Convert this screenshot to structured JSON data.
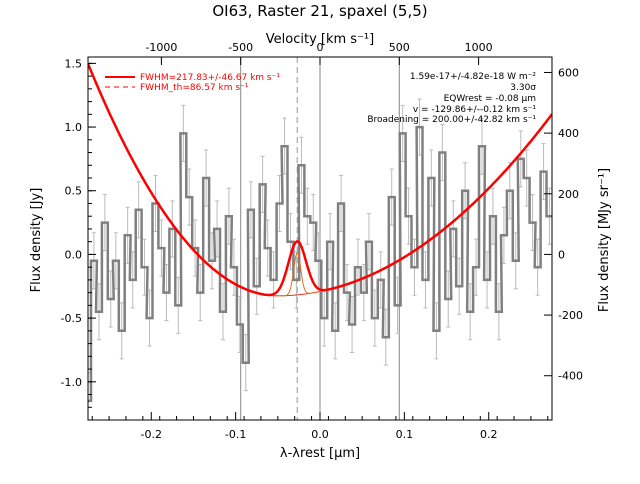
{
  "chart_data": {
    "type": "line",
    "title": "OI63, Raster 21, spaxel (5,5)",
    "xlabel": "λ-λrest [μm]",
    "ylabel_left": "Flux density [Jy]",
    "ylabel_right": "Flux density [MJy sr⁻¹]",
    "xlabel_top": "Velocity [km s⁻¹]",
    "xlim": [
      -0.275,
      0.275
    ],
    "ylim": [
      -1.3,
      1.55
    ],
    "xticks": [
      "-0.2",
      "-0.1",
      "0.0",
      "0.1",
      "0.2"
    ],
    "xtick_values": [
      -0.2,
      -0.1,
      0.0,
      0.1,
      0.2
    ],
    "yticks_left": [
      "-1.0",
      "-0.5",
      "0.0",
      "0.5",
      "1.0",
      "1.5"
    ],
    "ytick_values_left": [
      -1.0,
      -0.5,
      0.0,
      0.5,
      1.0,
      1.5
    ],
    "xticks_top": [
      "-1000",
      "-500",
      "0",
      "500",
      "1000"
    ],
    "xtick_values_top": [
      -1000,
      -500,
      0,
      500,
      1000
    ],
    "yticks_right": [
      "-600",
      "-400",
      "-200",
      "0",
      "200",
      "400",
      "600"
    ],
    "ytick_values_right": [
      -600,
      -400,
      -200,
      0,
      200,
      400,
      600
    ],
    "vertical_lines": [
      -0.094,
      0.0,
      0.094
    ],
    "line_center": -0.027,
    "legend": [
      {
        "label": "FWHM=217.83+/-46.67 km s⁻¹",
        "style": "solid",
        "color": "#ff0000"
      },
      {
        "label": "FWHM_th=86.57 km s⁻¹",
        "style": "dashed",
        "color": "#ff0000"
      }
    ],
    "annotations": [
      "1.59e-17+/-4.82e-18 W m⁻²",
      "3.30σ",
      "EQWrest = -0.08 μm",
      "v = -129.86+/--0.12 km s⁻¹",
      "Broadening = 200.00+/-42.82 km s⁻¹"
    ],
    "series": [
      {
        "name": "spectrum",
        "color": "#808080",
        "x": [
          -0.275,
          -0.268,
          -0.262,
          -0.255,
          -0.248,
          -0.242,
          -0.235,
          -0.228,
          -0.222,
          -0.215,
          -0.208,
          -0.202,
          -0.195,
          -0.188,
          -0.182,
          -0.175,
          -0.168,
          -0.162,
          -0.155,
          -0.148,
          -0.142,
          -0.135,
          -0.128,
          -0.122,
          -0.115,
          -0.108,
          -0.102,
          -0.095,
          -0.088,
          -0.082,
          -0.075,
          -0.068,
          -0.062,
          -0.055,
          -0.048,
          -0.042,
          -0.035,
          -0.028,
          -0.022,
          -0.015,
          -0.008,
          -0.002,
          0.005,
          0.012,
          0.018,
          0.025,
          0.032,
          0.038,
          0.045,
          0.052,
          0.058,
          0.065,
          0.072,
          0.078,
          0.085,
          0.092,
          0.098,
          0.105,
          0.112,
          0.118,
          0.125,
          0.132,
          0.138,
          0.145,
          0.152,
          0.158,
          0.165,
          0.172,
          0.178,
          0.185,
          0.192,
          0.198,
          0.205,
          0.212,
          0.218,
          0.225,
          0.232,
          0.238,
          0.245,
          0.252,
          0.258,
          0.265,
          0.272
        ],
        "y": [
          -1.15,
          -0.05,
          -0.45,
          0.25,
          -0.35,
          -0.05,
          -0.6,
          0.15,
          -0.2,
          0.35,
          -0.1,
          -0.5,
          0.4,
          0.05,
          -0.3,
          0.2,
          -0.4,
          0.95,
          0.45,
          0.05,
          -0.3,
          0.6,
          -0.05,
          0.2,
          -0.45,
          0.3,
          -0.1,
          -0.55,
          -0.85,
          0.35,
          -0.25,
          0.55,
          0.05,
          -0.2,
          0.4,
          0.85,
          0.1,
          -0.2,
          0.7,
          0.3,
          0.25,
          -0.05,
          -0.5,
          0.1,
          -0.6,
          0.4,
          -0.3,
          -0.55,
          -0.1,
          -0.3,
          0.1,
          -0.5,
          -0.2,
          -0.65,
          0.45,
          -0.4,
          0.95,
          0.3,
          -0.1,
          1.0,
          -0.2,
          0.6,
          -0.6,
          0.8,
          -0.35,
          0.2,
          -0.25,
          0.5,
          -0.45,
          -0.1,
          0.85,
          -0.2,
          0.3,
          -0.45,
          0.15,
          0.5,
          -0.05,
          0.75,
          0.6,
          0.25,
          -0.1,
          0.65,
          0.3
        ],
        "yerr": 0.22
      },
      {
        "name": "fit",
        "color": "#ff0000",
        "baseline_quadratic": {
          "vertex_x": -0.05,
          "vertex_y": -0.325,
          "a_left": 36.0,
          "a_right": 13.5
        },
        "gaussian": {
          "center": -0.027,
          "amplitude": 0.42,
          "sigma": 0.0105
        }
      }
    ]
  }
}
